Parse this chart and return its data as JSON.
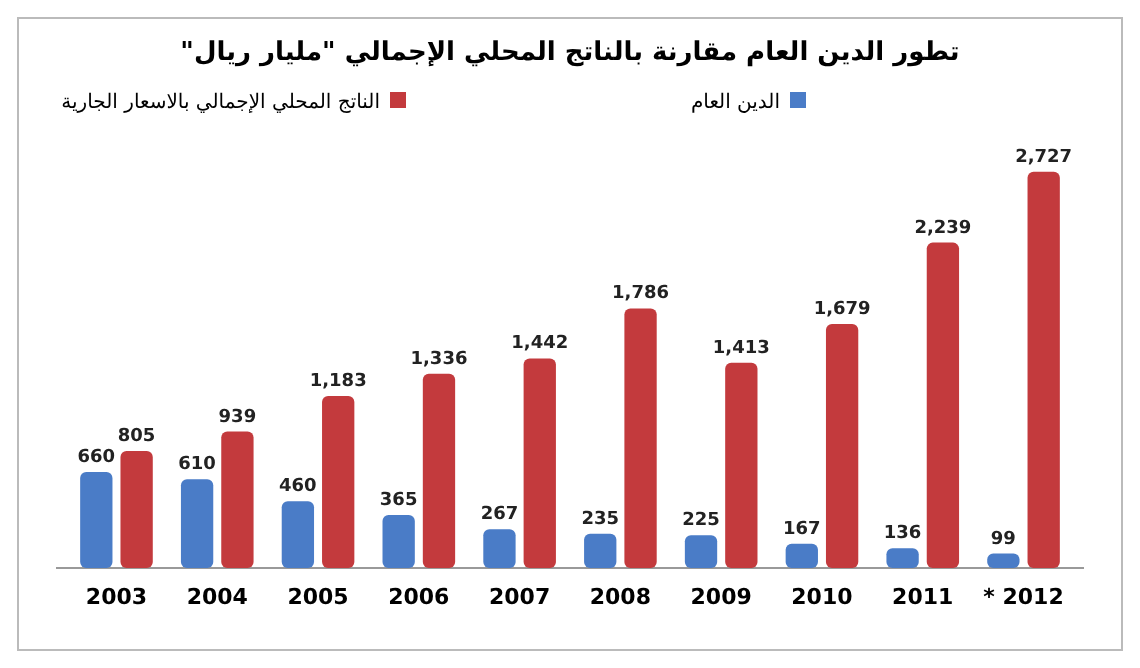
{
  "chart_data": {
    "type": "bar",
    "title": "تطور الدين العام مقارنة بالناتج المحلي الإجمالي \"مليار ريال\"",
    "categories": [
      "2003",
      "2004",
      "2005",
      "2006",
      "2007",
      "2008",
      "2009",
      "2010",
      "2011",
      "* 2012"
    ],
    "series": [
      {
        "name": "الدين العام",
        "color": "#4a7cc7",
        "values": [
          660,
          610,
          460,
          365,
          267,
          235,
          225,
          167,
          136,
          99
        ],
        "value_labels": [
          "660",
          "610",
          "460",
          "365",
          "267",
          "235",
          "225",
          "167",
          "136",
          "99"
        ]
      },
      {
        "name": "الناتج المحلي الإجمالي بالاسعار الجارية",
        "color": "#c33a3d",
        "values": [
          805,
          939,
          1183,
          1336,
          1442,
          1786,
          1413,
          1679,
          2239,
          2727
        ],
        "value_labels": [
          "805",
          "939",
          "1,183",
          "1,336",
          "1,442",
          "1,786",
          "1,413",
          "1,679",
          "2,239",
          "2,727"
        ]
      }
    ],
    "legend": "top",
    "grid": false,
    "tick_labels": "x"
  }
}
